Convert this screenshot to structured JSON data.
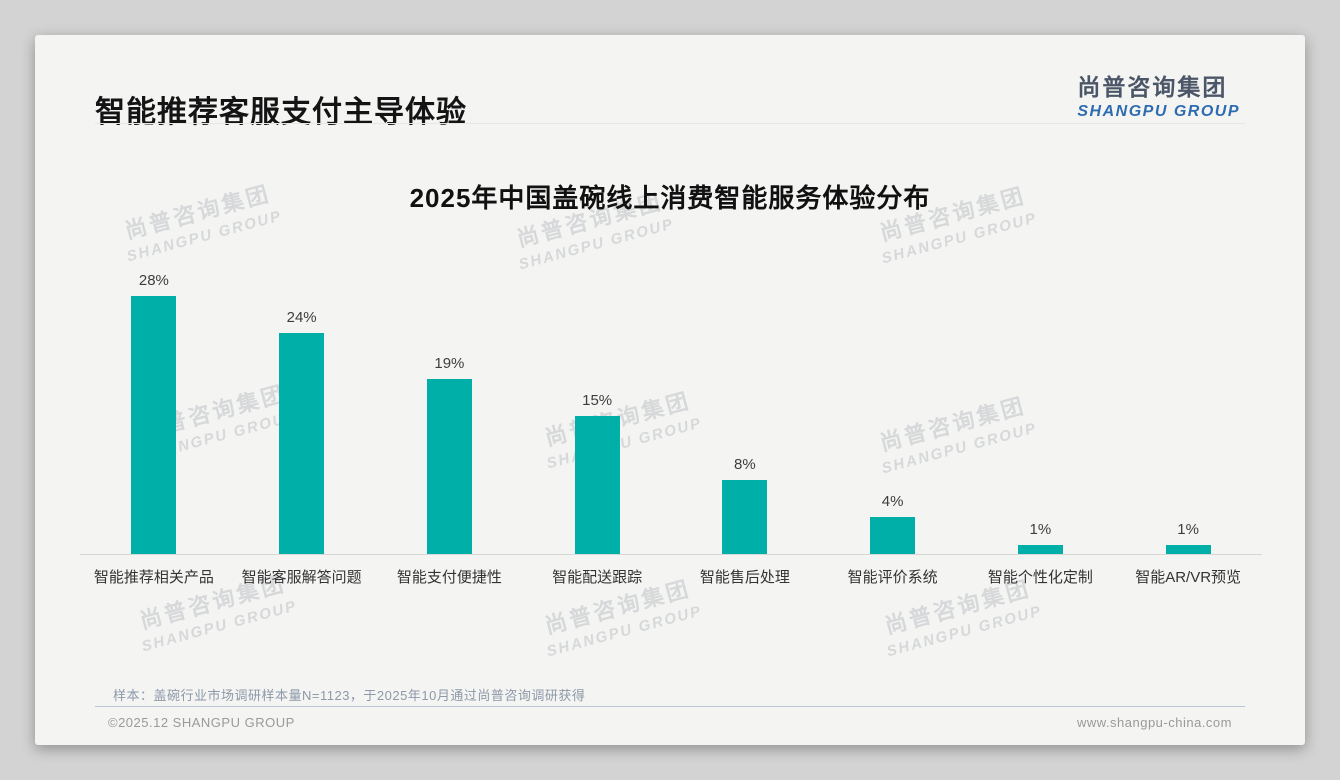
{
  "slide": {
    "header": {
      "title": "智能推荐客服支付主导体验"
    },
    "logo": {
      "cn": "尚普咨询集团",
      "en": "SHANGPU GROUP"
    },
    "watermark": {
      "cn": "尚普咨询集团",
      "en": "SHANGPU GROUP"
    },
    "footnote": "样本：盖碗行业市场调研样本量N=1123，于2025年10月通过尚普咨询调研获得",
    "footer": {
      "left": "©2025.12 SHANGPU GROUP",
      "right": "www.shangpu-china.com"
    }
  },
  "chart_data": {
    "type": "bar",
    "title": "2025年中国盖碗线上消费智能服务体验分布",
    "categories": [
      "智能推荐相关产品",
      "智能客服解答问题",
      "智能支付便捷性",
      "智能配送跟踪",
      "智能售后处理",
      "智能评价系统",
      "智能个性化定制",
      "智能AR/VR预览"
    ],
    "values": [
      28,
      24,
      19,
      15,
      8,
      4,
      1,
      1
    ],
    "data_labels": [
      "28%",
      "24%",
      "19%",
      "15%",
      "8%",
      "4%",
      "1%",
      "1%"
    ],
    "unit": "%",
    "bar_color": "#00AFA8",
    "ylim": [
      0,
      30
    ],
    "xlabel": "",
    "ylabel": "",
    "grid": false,
    "legend": "none"
  }
}
